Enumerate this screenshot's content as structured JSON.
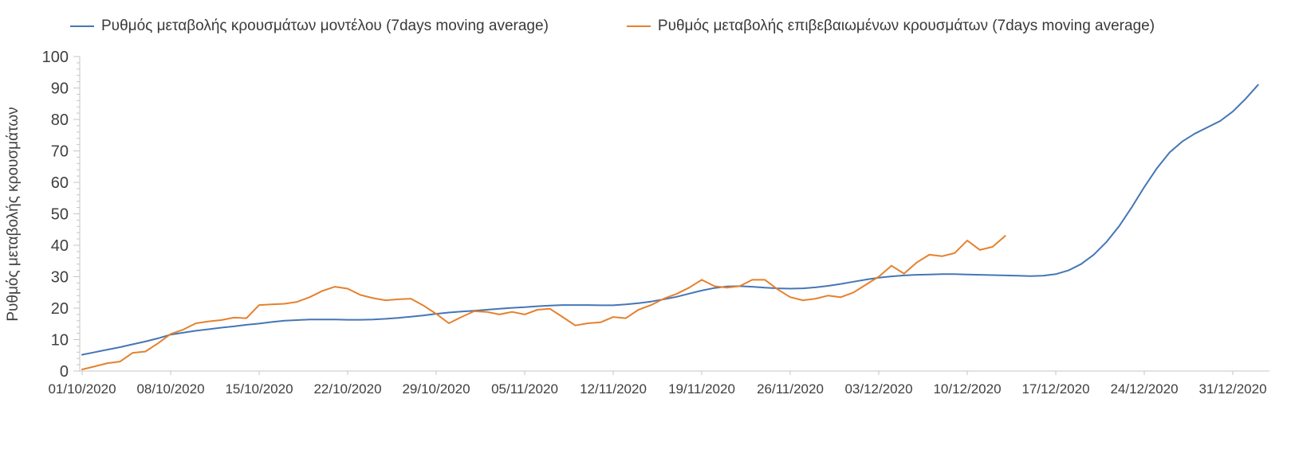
{
  "legend": {
    "position": "top"
  },
  "chart_data": {
    "type": "line",
    "title": "",
    "xlabel": "",
    "ylabel": "Ρυθμός μεταβολής κρουσμάτων",
    "ylim": [
      0,
      100
    ],
    "y_tick_step": 10,
    "y_minor_tick_step": 2,
    "grid": false,
    "legend_position": "top",
    "axis_color": "#c6c6c6",
    "text_color": "#3f3f3f",
    "x_unit": "days since 01/10/2020, one point per day",
    "x_tick_days": [
      0,
      7,
      14,
      21,
      28,
      35,
      42,
      49,
      56,
      63,
      70,
      77,
      84,
      91
    ],
    "x_tick_labels": [
      "01/10/2020",
      "08/10/2020",
      "15/10/2020",
      "22/10/2020",
      "29/10/2020",
      "05/11/2020",
      "12/11/2020",
      "19/11/2020",
      "26/11/2020",
      "03/12/2020",
      "10/12/2020",
      "17/12/2020",
      "24/12/2020",
      "31/12/2020"
    ],
    "series": [
      {
        "name": "Ρυθμός μεταβολής κρουσμάτων μοντέλου (7days moving average)",
        "color": "#4576b5",
        "start_day": 0,
        "values": [
          5.2,
          6.0,
          6.8,
          7.6,
          8.5,
          9.4,
          10.4,
          11.6,
          12.2,
          12.8,
          13.3,
          13.8,
          14.2,
          14.7,
          15.1,
          15.6,
          16.0,
          16.2,
          16.4,
          16.4,
          16.4,
          16.3,
          16.3,
          16.4,
          16.6,
          16.9,
          17.3,
          17.7,
          18.2,
          18.6,
          18.9,
          19.2,
          19.5,
          19.8,
          20.1,
          20.3,
          20.6,
          20.8,
          21.0,
          21.0,
          21.0,
          20.9,
          20.9,
          21.2,
          21.6,
          22.1,
          22.8,
          23.6,
          24.6,
          25.6,
          26.4,
          26.9,
          27.0,
          26.8,
          26.5,
          26.3,
          26.2,
          26.3,
          26.6,
          27.1,
          27.7,
          28.4,
          29.1,
          29.7,
          30.1,
          30.4,
          30.6,
          30.7,
          30.8,
          30.8,
          30.7,
          30.6,
          30.5,
          30.4,
          30.3,
          30.2,
          30.3,
          30.8,
          32.0,
          34.0,
          37.0,
          41.0,
          46.0,
          52.0,
          58.5,
          64.5,
          69.5,
          73.0,
          75.5,
          77.5,
          79.5,
          82.5,
          86.5,
          91.0
        ]
      },
      {
        "name": "Ρυθμός μεταβολής επιβεβαιωμένων κρουσμάτων (7days moving average)",
        "color": "#e5812d",
        "start_day": 0,
        "values": [
          0.5,
          1.5,
          2.5,
          3.0,
          5.8,
          6.2,
          8.8,
          11.8,
          13.2,
          15.2,
          15.8,
          16.2,
          17.0,
          16.8,
          21.0,
          21.2,
          21.4,
          22.0,
          23.5,
          25.5,
          26.8,
          26.2,
          24.2,
          23.2,
          22.5,
          22.8,
          23.0,
          20.8,
          18.2,
          15.2,
          17.2,
          19.0,
          18.8,
          18.0,
          18.8,
          18.0,
          19.5,
          19.8,
          17.2,
          14.5,
          15.2,
          15.5,
          17.2,
          16.8,
          19.5,
          21.0,
          23.0,
          24.5,
          26.5,
          29.0,
          27.0,
          26.5,
          27.0,
          29.0,
          29.0,
          26.0,
          23.5,
          22.5,
          23.0,
          24.0,
          23.5,
          25.0,
          27.5,
          30.0,
          33.5,
          31.0,
          34.5,
          37.0,
          36.5,
          37.5,
          41.5,
          38.5,
          39.5,
          43.0
        ]
      }
    ]
  }
}
